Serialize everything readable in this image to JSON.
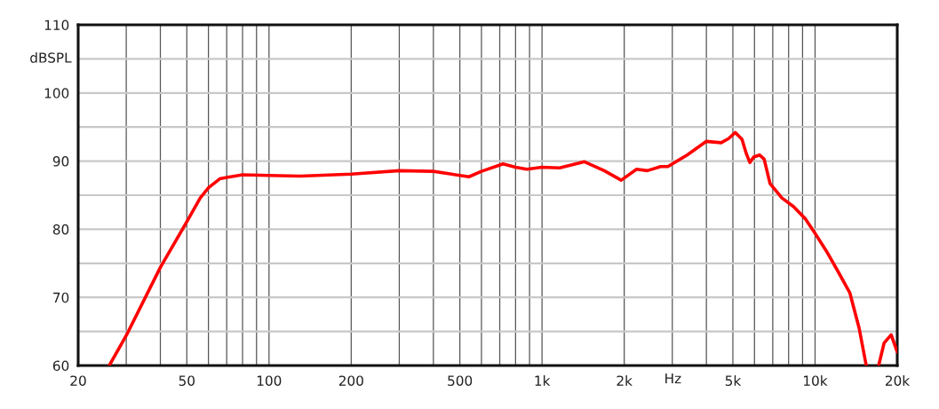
{
  "chart_data": {
    "type": "line",
    "xlabel": "Hz",
    "ylabel": "dBSPL",
    "log": "x",
    "grid": true,
    "xlim": [
      20,
      20000
    ],
    "ylim": [
      60,
      110
    ],
    "xticks": [
      20,
      {
        "value": 30,
        "label": null
      },
      {
        "value": 40,
        "label": null
      },
      50,
      {
        "value": 60,
        "label": null
      },
      {
        "value": 70,
        "label": null
      },
      {
        "value": 80,
        "label": null
      },
      {
        "value": 90,
        "label": null
      },
      100,
      200,
      {
        "value": 300,
        "label": null
      },
      {
        "value": 400,
        "label": null
      },
      500,
      {
        "value": 600,
        "label": null
      },
      {
        "value": 700,
        "label": null
      },
      {
        "value": 800,
        "label": null
      },
      {
        "value": 900,
        "label": null
      },
      {
        "value": 1000,
        "label": "1k"
      },
      {
        "value": 2000,
        "label": "2k"
      },
      {
        "value": 3000,
        "label": null
      },
      {
        "value": 4000,
        "label": null
      },
      {
        "value": 5000,
        "label": "5k"
      },
      {
        "value": 6000,
        "label": null
      },
      {
        "value": 7000,
        "label": null
      },
      {
        "value": 8000,
        "label": null
      },
      {
        "value": 9000,
        "label": null
      },
      {
        "value": 10000,
        "label": "10k"
      },
      {
        "value": 20000,
        "label": "20k"
      }
    ],
    "yticks": [
      60,
      {
        "value": 65,
        "label": null
      },
      70,
      {
        "value": 75,
        "label": null
      },
      80,
      {
        "value": 85,
        "label": null
      },
      90,
      {
        "value": 95,
        "label": null
      },
      100,
      {
        "value": 105,
        "label": null
      },
      110
    ],
    "series": [
      {
        "color": "#ff0000",
        "x": [
          26,
          30,
          40,
          50,
          56,
          60,
          66,
          70,
          80,
          100,
          130,
          200,
          300,
          400,
          500,
          540,
          600,
          720,
          800,
          880,
          1000,
          1160,
          1430,
          1690,
          1950,
          2220,
          2430,
          2720,
          2890,
          3000,
          3400,
          4000,
          4530,
          4820,
          5100,
          5400,
          5600,
          5770,
          5960,
          6260,
          6510,
          6840,
          7560,
          8350,
          9230,
          10000,
          11000,
          12100,
          13400,
          14500,
          15400,
          16000,
          17100,
          17900,
          19000,
          20000
        ],
        "values": [
          60,
          64.4,
          74.4,
          81.1,
          84.6,
          86.1,
          87.4,
          87.6,
          88.0,
          87.9,
          87.8,
          88.1,
          88.6,
          88.5,
          87.9,
          87.7,
          88.5,
          89.6,
          89.1,
          88.8,
          89.1,
          89.0,
          89.9,
          88.6,
          87.2,
          88.8,
          88.6,
          89.2,
          89.2,
          89.6,
          90.9,
          92.9,
          92.7,
          93.3,
          94.2,
          93.2,
          91.1,
          89.8,
          90.6,
          90.9,
          90.3,
          86.7,
          84.6,
          83.3,
          81.5,
          79.4,
          76.8,
          73.9,
          70.7,
          65.5,
          60,
          null,
          60,
          63.3,
          64.5,
          62.0
        ]
      }
    ]
  }
}
